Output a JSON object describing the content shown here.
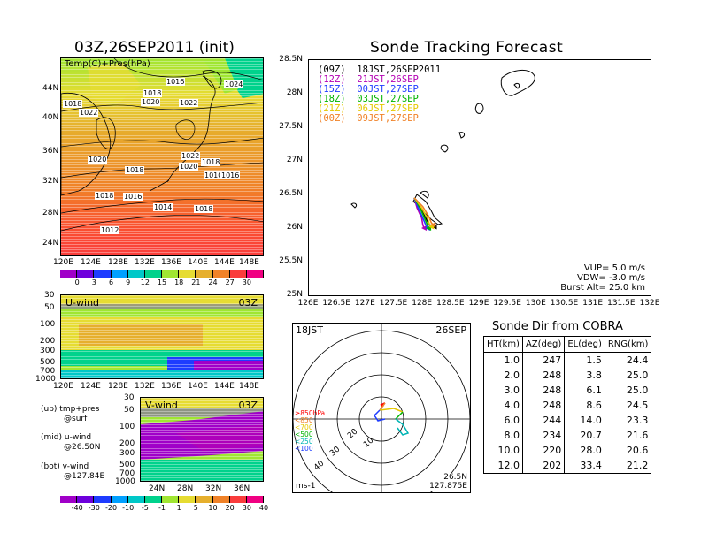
{
  "map_panel": {
    "title": "03Z,26SEP2011 (init)",
    "label": "Temp(C)+Pres(hPa)",
    "x_ticks": [
      "120E",
      "124E",
      "128E",
      "132E",
      "136E",
      "140E",
      "144E",
      "148E"
    ],
    "y_ticks": [
      "44N",
      "40N",
      "36N",
      "32N",
      "28N",
      "24N"
    ],
    "isobar_labels": [
      "1016",
      "1018",
      "1020",
      "1022",
      "1024",
      "1018",
      "1022",
      "1018",
      "1020",
      "1022",
      "1020",
      "1018",
      "1018",
      "1016",
      "1014",
      "1012",
      "1010",
      "1016",
      "1018"
    ],
    "colorbar": {
      "labels": [
        "0",
        "3",
        "6",
        "9",
        "12",
        "15",
        "18",
        "21",
        "24",
        "27",
        "30"
      ],
      "colors": [
        "#a000c8",
        "#6e00dc",
        "#1e3cff",
        "#00a0ff",
        "#00c8c8",
        "#00d28c",
        "#a0e632",
        "#e6dc32",
        "#e6af2d",
        "#f08228",
        "#fa3c3c",
        "#f00082"
      ]
    }
  },
  "u_panel": {
    "label": "U-wind",
    "time": "03Z",
    "y_ticks": [
      "30",
      "50",
      "100",
      "200",
      "300",
      "500",
      "700",
      "1000"
    ],
    "x_ticks": [
      "120E",
      "124E",
      "128E",
      "132E",
      "136E",
      "140E",
      "144E",
      "148E"
    ]
  },
  "v_panel": {
    "label": "V-wind",
    "time": "03Z",
    "y_ticks": [
      "30",
      "50",
      "100",
      "200",
      "300",
      "500",
      "700",
      "1000"
    ],
    "x_ticks": [
      "24N",
      "28N",
      "32N",
      "36N"
    ],
    "colorbar": {
      "labels": [
        "-40",
        "-30",
        "-20",
        "-10",
        "-5",
        "-1",
        "1",
        "5",
        "10",
        "20",
        "30",
        "40"
      ],
      "colors": [
        "#a000c8",
        "#6e00dc",
        "#1e3cff",
        "#00a0ff",
        "#00c8c8",
        "#00d28c",
        "#a0e632",
        "#e6dc32",
        "#e6af2d",
        "#f08228",
        "#fa3c3c",
        "#f00082"
      ]
    }
  },
  "notes": [
    {
      "l1": "(up) tmp+pres",
      "l2": "@surf"
    },
    {
      "l1": "(mid) u-wind",
      "l2": "@26.50N"
    },
    {
      "l1": "(bot) v-wind",
      "l2": "@127.84E"
    }
  ],
  "tracking": {
    "title": "Sonde Tracking Forecast",
    "x_ticks": [
      "126E",
      "126.5E",
      "127E",
      "127.5E",
      "128E",
      "128.5E",
      "129E",
      "129.5E",
      "130E",
      "130.5E",
      "131E",
      "131.5E",
      "132E"
    ],
    "y_ticks": [
      "28.5N",
      "28N",
      "27.5N",
      "27N",
      "26.5N",
      "26N",
      "25.5N",
      "25N"
    ],
    "legend": [
      {
        "text": "(09Z)  18JST,26SEP2011",
        "color": "#000000"
      },
      {
        "text": "(12Z)  21JST,26SEP",
        "color": "#b400b4"
      },
      {
        "text": "(15Z)  00JST,27SEP",
        "color": "#1e3cff"
      },
      {
        "text": "(18Z)  03JST,27SEP",
        "color": "#00b400"
      },
      {
        "text": "(21Z)  06JST,27SEP",
        "color": "#e6c800"
      },
      {
        "text": "(00Z)  09JST,27SEP",
        "color": "#f08228"
      }
    ],
    "params": [
      "VUP=  5.0  m/s",
      "VDW= -3.0  m/s",
      "Burst Alt=  25.0  km"
    ]
  },
  "polar": {
    "time_label": "18JST",
    "date_label": "26SEP",
    "rings": [
      "10",
      "20",
      "30",
      "40"
    ],
    "levels": [
      {
        "text": "≥850hPa",
        "color": "#ff0000"
      },
      {
        "text": "<850",
        "color": "#f08228"
      },
      {
        "text": "<700",
        "color": "#e6c800"
      },
      {
        "text": "<500",
        "color": "#00b400"
      },
      {
        "text": "<250",
        "color": "#00b4b4"
      },
      {
        "text": "<100",
        "color": "#1e3cff"
      }
    ],
    "unit": "ms-1",
    "loc_lat": "26.5N",
    "loc_lon": "127.875E"
  },
  "direction_table": {
    "title": "Sonde Dir from COBRA",
    "headers": [
      "HT(km)",
      "AZ(deg)",
      "EL(deg)",
      "RNG(km)"
    ],
    "rows": [
      [
        "1.0",
        "247",
        "1.5",
        "24.4"
      ],
      [
        "2.0",
        "248",
        "3.8",
        "25.0"
      ],
      [
        "3.0",
        "248",
        "6.1",
        "25.0"
      ],
      [
        "4.0",
        "248",
        "8.6",
        "24.5"
      ],
      [
        "6.0",
        "244",
        "14.0",
        "23.3"
      ],
      [
        "8.0",
        "234",
        "20.7",
        "21.6"
      ],
      [
        "10.0",
        "220",
        "28.0",
        "20.6"
      ],
      [
        "12.0",
        "202",
        "33.4",
        "21.2"
      ]
    ]
  },
  "chart_data": [
    {
      "type": "heatmap",
      "title": "03Z,26SEP2011 (init)",
      "subtitle": "Temp(C)+Pres(hPa)",
      "xlim": [
        120,
        150
      ],
      "ylim": [
        22,
        48
      ]
    },
    {
      "type": "line",
      "title": "Sonde Tracking Forecast",
      "xlim": [
        126,
        132
      ],
      "ylim": [
        25,
        28.5
      ],
      "series": [
        {
          "name": "18JST,26SEP2011",
          "color": "#000000",
          "x": [
            127.85,
            127.95,
            128.05,
            128.12,
            128.2
          ],
          "y": [
            26.45,
            26.3,
            26.15,
            26.05,
            26.02
          ]
        },
        {
          "name": "21JST,26SEP",
          "color": "#b400b4",
          "x": [
            127.85,
            127.9,
            127.98,
            128.0,
            128.02
          ],
          "y": [
            26.45,
            26.3,
            26.15,
            26.05,
            26.0
          ]
        },
        {
          "name": "00JST,27SEP",
          "color": "#1e3cff",
          "x": [
            127.85,
            127.92,
            128.0,
            128.05,
            128.08
          ],
          "y": [
            26.45,
            26.3,
            26.15,
            26.05,
            26.0
          ]
        },
        {
          "name": "03JST,27SEP",
          "color": "#00b400",
          "x": [
            127.85,
            127.95,
            128.03,
            128.08,
            128.1
          ],
          "y": [
            26.45,
            26.3,
            26.15,
            26.05,
            26.0
          ]
        },
        {
          "name": "06JST,27SEP",
          "color": "#e6c800",
          "x": [
            127.85,
            127.98,
            128.08,
            128.12,
            128.15
          ],
          "y": [
            26.45,
            26.3,
            26.15,
            26.05,
            26.02
          ]
        },
        {
          "name": "09JST,27SEP",
          "color": "#f08228",
          "x": [
            127.85,
            128.0,
            128.1,
            128.15,
            128.18
          ],
          "y": [
            26.45,
            26.32,
            26.18,
            26.08,
            26.05
          ]
        }
      ]
    },
    {
      "type": "table",
      "title": "Sonde Dir from COBRA",
      "columns": [
        "HT(km)",
        "AZ(deg)",
        "EL(deg)",
        "RNG(km)"
      ],
      "rows": [
        [
          1.0,
          247,
          1.5,
          24.4
        ],
        [
          2.0,
          248,
          3.8,
          25.0
        ],
        [
          3.0,
          248,
          6.1,
          25.0
        ],
        [
          4.0,
          248,
          8.6,
          24.5
        ],
        [
          6.0,
          244,
          14.0,
          23.3
        ],
        [
          8.0,
          234,
          20.7,
          21.6
        ],
        [
          10.0,
          220,
          28.0,
          20.6
        ],
        [
          12.0,
          202,
          33.4,
          21.2
        ]
      ]
    }
  ]
}
